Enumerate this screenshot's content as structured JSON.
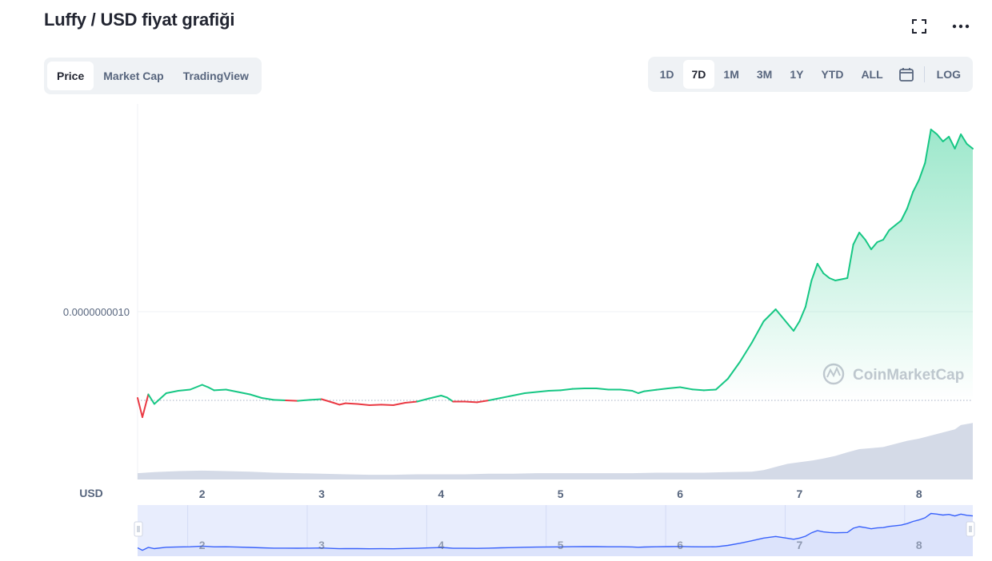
{
  "header": {
    "title": "Luffy / USD fiyat grafiği"
  },
  "tabs": [
    {
      "label": "Price",
      "active": true
    },
    {
      "label": "Market Cap",
      "active": false
    },
    {
      "label": "TradingView",
      "active": false
    }
  ],
  "ranges": [
    {
      "label": "1D",
      "active": false
    },
    {
      "label": "7D",
      "active": true
    },
    {
      "label": "1M",
      "active": false
    },
    {
      "label": "3M",
      "active": false
    },
    {
      "label": "1Y",
      "active": false
    },
    {
      "label": "YTD",
      "active": false
    },
    {
      "label": "ALL",
      "active": false
    }
  ],
  "log_label": "LOG",
  "icons": {
    "fullscreen": "fullscreen-icon",
    "more": "more-icon",
    "calendar": "calendar-icon"
  },
  "colors": {
    "up": "#16c784",
    "down": "#ea3943",
    "volume": "#cfd6e4",
    "navigator": "#3861fb"
  },
  "watermark": "CoinMarketCap",
  "chart_data": {
    "type": "line",
    "currency_label": "USD",
    "y_tick_labels": [
      "0.0000000010"
    ],
    "x_tick_labels": [
      "2",
      "3",
      "4",
      "5",
      "6",
      "7",
      "8"
    ],
    "baseline_reference": 6.3e-10,
    "ylim": [
      3e-10,
      1.8e-09
    ],
    "price_series": {
      "x": [
        1.46,
        1.5,
        1.55,
        1.6,
        1.7,
        1.8,
        1.9,
        2.0,
        2.05,
        2.1,
        2.2,
        2.3,
        2.4,
        2.5,
        2.6,
        2.7,
        2.8,
        2.9,
        3.0,
        3.1,
        3.15,
        3.2,
        3.3,
        3.4,
        3.5,
        3.6,
        3.7,
        3.8,
        3.9,
        4.0,
        4.05,
        4.1,
        4.2,
        4.3,
        4.4,
        4.5,
        4.6,
        4.7,
        4.8,
        4.9,
        5.0,
        5.1,
        5.2,
        5.3,
        5.4,
        5.5,
        5.6,
        5.65,
        5.7,
        5.8,
        5.9,
        6.0,
        6.1,
        6.2,
        6.3,
        6.4,
        6.5,
        6.6,
        6.7,
        6.8,
        6.9,
        6.95,
        7.0,
        7.05,
        7.1,
        7.15,
        7.2,
        7.25,
        7.3,
        7.4,
        7.45,
        7.5,
        7.55,
        7.6,
        7.65,
        7.7,
        7.75,
        7.8,
        7.85,
        7.9,
        7.95,
        8.0,
        8.05,
        8.1,
        8.15,
        8.2,
        8.25,
        8.3,
        8.35,
        8.4,
        8.45
      ],
      "y": [
        0.64,
        0.56,
        0.655,
        0.615,
        0.66,
        0.67,
        0.675,
        0.695,
        0.685,
        0.672,
        0.675,
        0.665,
        0.655,
        0.64,
        0.632,
        0.63,
        0.628,
        0.632,
        0.635,
        0.62,
        0.612,
        0.618,
        0.615,
        0.61,
        0.612,
        0.61,
        0.62,
        0.625,
        0.638,
        0.65,
        0.642,
        0.625,
        0.625,
        0.622,
        0.63,
        0.64,
        0.65,
        0.66,
        0.665,
        0.67,
        0.672,
        0.678,
        0.68,
        0.68,
        0.675,
        0.675,
        0.67,
        0.66,
        0.668,
        0.674,
        0.68,
        0.685,
        0.676,
        0.672,
        0.675,
        0.72,
        0.79,
        0.87,
        0.96,
        1.01,
        0.95,
        0.92,
        0.96,
        1.02,
        1.13,
        1.2,
        1.16,
        1.14,
        1.13,
        1.14,
        1.28,
        1.33,
        1.3,
        1.26,
        1.29,
        1.3,
        1.34,
        1.36,
        1.38,
        1.43,
        1.5,
        1.55,
        1.62,
        1.76,
        1.74,
        1.71,
        1.73,
        1.68,
        1.74,
        1.7,
        1.68
      ]
    },
    "volume_series": {
      "x": [
        1.46,
        1.6,
        1.8,
        2.0,
        2.2,
        2.4,
        2.6,
        2.8,
        3.0,
        3.2,
        3.4,
        3.6,
        3.8,
        4.0,
        4.2,
        4.4,
        4.6,
        4.8,
        5.0,
        5.2,
        5.4,
        5.6,
        5.8,
        6.0,
        6.2,
        6.4,
        6.6,
        6.7,
        6.8,
        6.9,
        7.0,
        7.1,
        7.2,
        7.3,
        7.4,
        7.5,
        7.6,
        7.7,
        7.8,
        7.9,
        8.0,
        8.1,
        8.2,
        8.3,
        8.35,
        8.45
      ],
      "y": [
        12,
        14,
        16,
        17,
        16,
        15,
        13,
        12,
        11,
        10,
        9,
        9,
        10,
        10,
        10,
        11,
        11,
        12,
        12,
        12,
        12,
        12,
        13,
        13,
        13,
        14,
        15,
        18,
        24,
        30,
        33,
        36,
        40,
        45,
        52,
        58,
        60,
        62,
        68,
        74,
        78,
        84,
        90,
        96,
        104,
        108
      ]
    }
  }
}
